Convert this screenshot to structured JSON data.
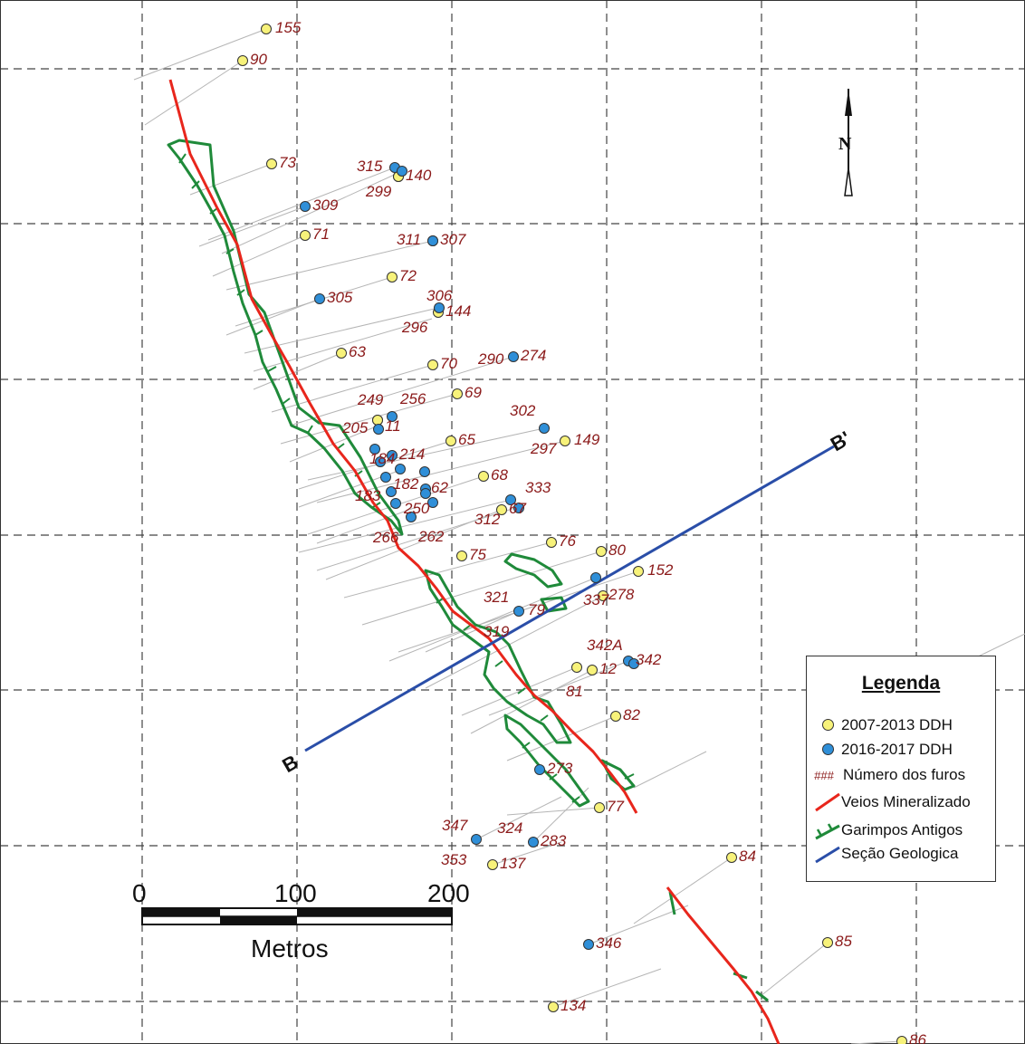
{
  "legend": {
    "title": "Legenda",
    "items": [
      {
        "label": "2007-2013 DDH",
        "color": "#f7f27a"
      },
      {
        "label": "2016-2017 DDH",
        "color": "#2f8fd8"
      },
      {
        "label": "Número dos furos",
        "symbol": "###"
      },
      {
        "label": "Veios Mineralizado",
        "color": "#e8261c"
      },
      {
        "label": "Garimpos Antigos",
        "color": "#1f8a3a"
      },
      {
        "label": "Seção Geologica",
        "color": "#2a4ea8"
      }
    ]
  },
  "north_arrow": {
    "label": "N"
  },
  "section": {
    "start_label": "B",
    "end_label": "B'"
  },
  "scale_bar": {
    "ticks": [
      "0",
      "100",
      "200"
    ],
    "unit": "Metros"
  },
  "holes_2007_2013": [
    "155",
    "90",
    "73",
    "140",
    "299",
    "71",
    "72",
    "144",
    "63",
    "70",
    "69",
    "256",
    "249",
    "65",
    "149",
    "68",
    "67",
    "76",
    "80",
    "152",
    "278",
    "12",
    "82",
    "77",
    "137",
    "84",
    "85",
    "134",
    "86",
    "75",
    "81"
  ],
  "holes_2016_2017": [
    "315",
    "309",
    "311",
    "307",
    "305",
    "306",
    "274",
    "302",
    "11",
    "205",
    "184",
    "214",
    "182",
    "62",
    "250",
    "333",
    "337",
    "342",
    "346",
    "273",
    "283",
    "347",
    "79"
  ],
  "other_labels": [
    "296",
    "290",
    "297",
    "183",
    "312",
    "266",
    "262",
    "321",
    "319",
    "342A",
    "324",
    "353"
  ]
}
